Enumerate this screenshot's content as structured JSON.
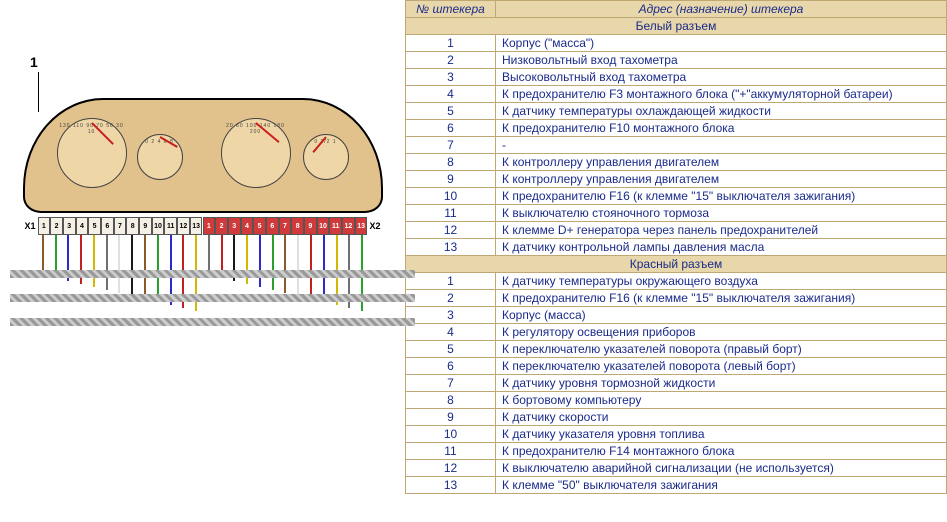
{
  "columns": {
    "plug_no": "№ штекера",
    "address": "Адрес (назначение) штекера"
  },
  "sections": [
    {
      "title": "Белый разъем",
      "rows": [
        {
          "n": "1",
          "d": "Корпус (\"масса\")"
        },
        {
          "n": "2",
          "d": "Низковольтный вход тахометра"
        },
        {
          "n": "3",
          "d": "Высоковольтный вход тахометра"
        },
        {
          "n": "4",
          "d": "К предохранителю F3 монтажного блока (\"+\"аккумуляторной батареи)"
        },
        {
          "n": "5",
          "d": "К датчику температуры охлаждающей жидкости"
        },
        {
          "n": "6",
          "d": "К предохранителю F10 монтажного блока"
        },
        {
          "n": "7",
          "d": "-"
        },
        {
          "n": "8",
          "d": "К контроллеру управления двигателем"
        },
        {
          "n": "9",
          "d": "К контроллеру управления двигателем"
        },
        {
          "n": "10",
          "d": "К предохранителю F16 (к клемме \"15\" выключателя зажигания)"
        },
        {
          "n": "11",
          "d": "К выключателю стояночного тормоза"
        },
        {
          "n": "12",
          "d": "К клемме D+ генератора через панель предохранителей"
        },
        {
          "n": "13",
          "d": "К датчику контрольной лампы давления масла"
        }
      ]
    },
    {
      "title": "Красный разъем",
      "rows": [
        {
          "n": "1",
          "d": "К датчику температуры окружающего воздуха"
        },
        {
          "n": "2",
          "d": "К предохранителю F16 (к клемме \"15\" выключателя зажигания)"
        },
        {
          "n": "3",
          "d": "Корпус (масса)"
        },
        {
          "n": "4",
          "d": "К регулятору освещения приборов"
        },
        {
          "n": "5",
          "d": "К переключателю указателей поворота (правый борт)"
        },
        {
          "n": "6",
          "d": "К переключателю указателей поворота (левый борт)"
        },
        {
          "n": "7",
          "d": "К датчику уровня тормозной жидкости"
        },
        {
          "n": "8",
          "d": "К бортовому компьютеру"
        },
        {
          "n": "9",
          "d": "К датчику скорости"
        },
        {
          "n": "10",
          "d": "К датчику указателя уровня топлива"
        },
        {
          "n": "11",
          "d": "К предохранителю F14 монтажного блока"
        },
        {
          "n": "12",
          "d": "К выключателю аварийной сигнализации (не используется)"
        },
        {
          "n": "13",
          "d": "К клемме \"50\" выключателя зажигания"
        }
      ]
    }
  ],
  "diagram": {
    "callout": "1",
    "x1_label": "X1",
    "x2_label": "X2",
    "pin_numbers": [
      "1",
      "2",
      "3",
      "4",
      "5",
      "6",
      "7",
      "8",
      "9",
      "10",
      "11",
      "12",
      "13"
    ],
    "dial_ticks_big_left": "130 110 90 70 50 30 10",
    "dial_ticks_big_right": "20 60 100 140 180 200",
    "dial_ticks_small": "0 2 4 6 8",
    "dial_ticks_fuel": "0 1/2 1",
    "wire_colors_white": [
      "#8a5a2b",
      "#2aa02a",
      "#2a2ad0",
      "#c02020",
      "#d2b800",
      "#707070",
      "#e0e0e0",
      "#1a1a1a",
      "#8a5a2b",
      "#2aa02a",
      "#2a2ad0",
      "#c02020",
      "#d2b800"
    ],
    "wire_colors_red": [
      "#707070",
      "#c02020",
      "#1a1a1a",
      "#d2b800",
      "#2a2ad0",
      "#2aa02a",
      "#8a5a2b",
      "#e0e0e0",
      "#c02020",
      "#2a2ad0",
      "#d2b800",
      "#707070",
      "#2aa02a"
    ]
  },
  "style": {
    "header_bg": "#e8d7ab",
    "border": "#bfa874",
    "text": "#1a2a8a",
    "cluster_bg": "#e2c28c",
    "dial_bg": "#efd6a6",
    "needle": "#c62020",
    "red_pin": "#d13a3a"
  }
}
